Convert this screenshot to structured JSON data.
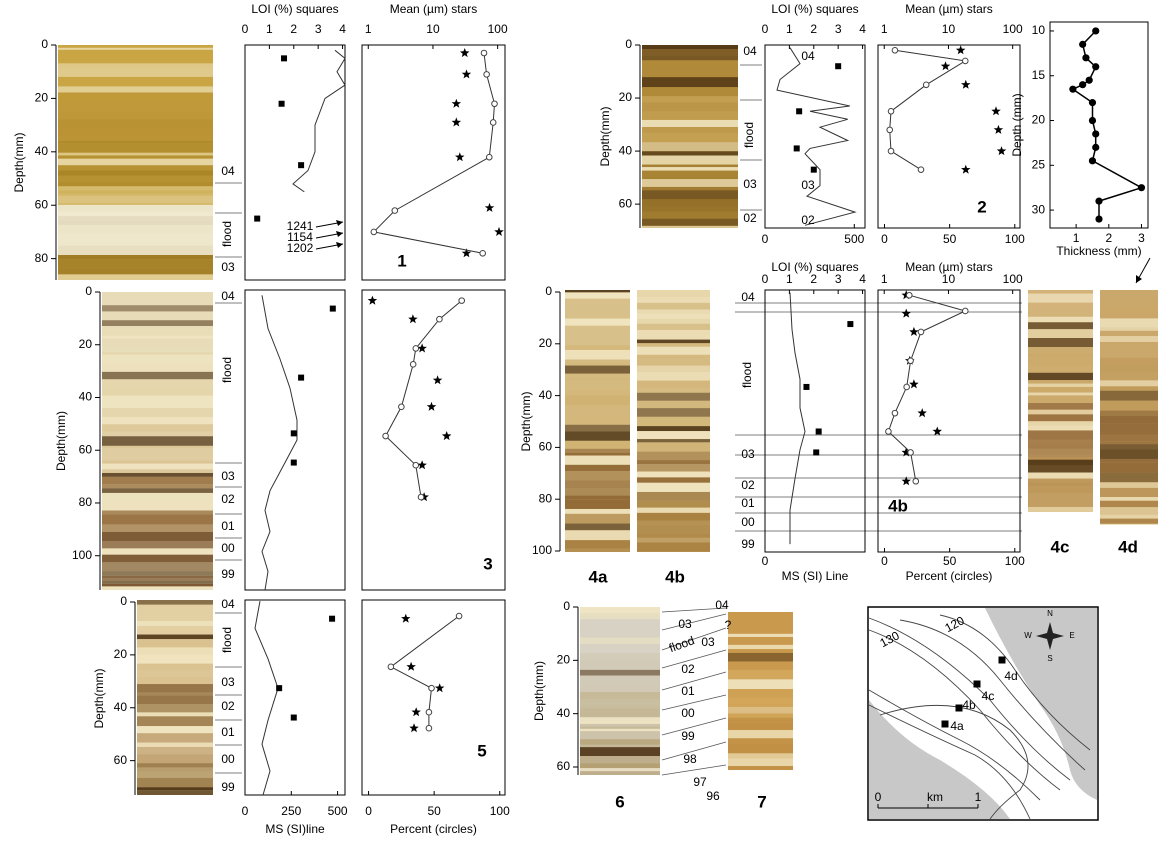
{
  "chart_data": [
    {
      "type": "core",
      "ylim": [
        0,
        88
      ],
      "yticks": [
        0,
        20,
        40,
        60,
        80
      ],
      "y_label": "Depth(mm)",
      "layers": [
        "04",
        "flood",
        "03"
      ]
    },
    {
      "type": "profile",
      "ylim": [
        0,
        88
      ],
      "top": {
        "label": "LOI (%) squares",
        "xlim": [
          0,
          4.1
        ],
        "xticks": [
          0,
          1,
          2,
          3,
          4
        ]
      },
      "bottom": {
        "xlim": [
          0,
          540
        ]
      },
      "annotations": [
        "1241",
        "1154",
        "1202"
      ],
      "series": [
        {
          "axis": "bottom",
          "marker": "line",
          "values": [
            486,
            540,
            497,
            540,
            432,
            378,
            378,
            340,
            259,
            320
          ],
          "depth": [
            2,
            5,
            10,
            15,
            20,
            30,
            40,
            47,
            52,
            55
          ]
        },
        {
          "axis": "top",
          "marker": "square",
          "values": [
            1.6,
            1.5,
            2.3,
            0.5
          ],
          "depth": [
            5,
            22,
            45,
            65
          ]
        }
      ]
    },
    {
      "type": "profile",
      "ylim": [
        0,
        88
      ],
      "panel_label": "1",
      "top": {
        "label": "Mean (µm) stars",
        "xlim": [
          0.8,
          130
        ],
        "xticks": [
          1,
          10,
          100
        ],
        "log": true
      },
      "bottom": {
        "xlim": [
          -5,
          104
        ]
      },
      "series": [
        {
          "axis": "top",
          "marker": "star",
          "values": [
            31,
            33,
            23,
            23,
            26,
            75,
            105,
            33
          ],
          "depth": [
            3,
            11,
            22,
            29,
            42,
            61,
            70,
            78
          ]
        },
        {
          "axis": "bottom",
          "marker": "circle",
          "connect": true,
          "values": [
            88,
            90,
            96,
            95,
            92,
            20,
            4,
            87
          ],
          "depth": [
            3,
            11,
            22,
            29,
            42,
            62,
            70,
            78
          ]
        }
      ]
    },
    {
      "type": "core",
      "ylim": [
        0,
        69
      ],
      "yticks": [
        0,
        20,
        40,
        60
      ],
      "y_label": "Depth(mm)",
      "layers": [
        "04",
        "flood",
        "03",
        "02"
      ]
    },
    {
      "type": "profile",
      "ylim": [
        0,
        69
      ],
      "top": {
        "label": "LOI (%) squares",
        "xlim": [
          0,
          4.1
        ],
        "xticks": [
          0,
          1,
          2,
          3,
          4
        ]
      },
      "bottom": {
        "xlim": [
          0,
          560
        ],
        "xticks": [
          0,
          500
        ]
      },
      "annotations": [
        "04",
        "03",
        "02"
      ],
      "series": [
        {
          "axis": "bottom",
          "marker": "line",
          "values": [
            140,
            196,
            84,
            67,
            475,
            252,
            463,
            308,
            463,
            252,
            224,
            308,
            308,
            235,
            504,
            224
          ],
          "depth": [
            1,
            7,
            13,
            17,
            23,
            25,
            28,
            31,
            36,
            39,
            41,
            47,
            53,
            57,
            63,
            68
          ]
        },
        {
          "axis": "top",
          "marker": "square",
          "values": [
            3.0,
            1.4,
            1.3,
            2.0
          ],
          "depth": [
            8,
            25,
            39,
            47
          ]
        }
      ]
    },
    {
      "type": "profile",
      "ylim": [
        0,
        69
      ],
      "panel_label": "2",
      "top": {
        "label": "Mean (µm) stars",
        "xlim": [
          0.8,
          130
        ],
        "xticks": [
          1,
          10,
          100
        ],
        "log": true
      },
      "bottom": {
        "xlim": [
          -5,
          104
        ],
        "xticks": [
          0,
          50,
          100
        ]
      },
      "series": [
        {
          "axis": "top",
          "marker": "star",
          "values": [
            15.5,
            9,
            18.6,
            55,
            60,
            67,
            18.6
          ],
          "depth": [
            2,
            8,
            15,
            25,
            32,
            40,
            47
          ]
        },
        {
          "axis": "bottom",
          "marker": "circle",
          "connect": true,
          "values": [
            8,
            62,
            32,
            5,
            4,
            5,
            28
          ],
          "depth": [
            2,
            6,
            15,
            25,
            32,
            40,
            47
          ]
        }
      ]
    },
    {
      "type": "scatter",
      "x_label": "Thickness (mm)",
      "y_label": "Depth (mm)",
      "xlim": [
        0.2,
        3.2
      ],
      "xticks": [
        1,
        2,
        3
      ],
      "ylim": [
        9,
        32
      ],
      "yticks": [
        10,
        15,
        20,
        25,
        30
      ],
      "values": [
        1.6,
        1.2,
        1.3,
        1.6,
        1.4,
        1.2,
        0.9,
        1.5,
        1.5,
        1.6,
        1.6,
        1.5,
        3.0,
        1.7,
        1.7
      ],
      "depth": [
        10,
        11.5,
        13,
        14,
        15.5,
        16,
        16.5,
        18,
        20,
        21.5,
        23,
        24.5,
        27.5,
        29,
        31
      ]
    },
    {
      "type": "core",
      "ylim": [
        0,
        113
      ],
      "yticks": [
        0,
        20,
        40,
        60,
        80,
        100
      ],
      "y_label": "Depth(mm)",
      "layers": [
        "04",
        "flood",
        "03",
        "02",
        "01",
        "00",
        "99"
      ]
    },
    {
      "type": "profile",
      "ylim": [
        0,
        113
      ],
      "top": {
        "xlim": [
          0,
          4.1
        ]
      },
      "bottom": {
        "xlim": [
          0,
          540
        ]
      },
      "series": [
        {
          "axis": "bottom",
          "marker": "line",
          "values": [
            92,
            124,
            189,
            243,
            281,
            281,
            216,
            135,
            108,
            135,
            92,
            124,
            108
          ],
          "depth": [
            2,
            14.5,
            26,
            37,
            49,
            56.5,
            65,
            75.6,
            83,
            91,
            98.5,
            106,
            113
          ]
        },
        {
          "axis": "top",
          "marker": "square",
          "values": [
            3.6,
            2.3,
            2.0,
            2.0
          ],
          "depth": [
            7,
            33,
            54,
            65
          ]
        }
      ]
    },
    {
      "type": "profile",
      "ylim": [
        0,
        113
      ],
      "panel_label": "3",
      "top": {
        "xlim": [
          0.8,
          130
        ],
        "log": true
      },
      "bottom": {
        "xlim": [
          -5,
          104
        ]
      },
      "series": [
        {
          "axis": "top",
          "marker": "star",
          "values": [
            1.16,
            4.9,
            6.8,
            11.8,
            9.5,
            16.3,
            6.8,
            7.3
          ],
          "depth": [
            4,
            11,
            22,
            34,
            44,
            55,
            66,
            78
          ]
        },
        {
          "axis": "bottom",
          "marker": "circle",
          "connect": true,
          "values": [
            71,
            54,
            36,
            34,
            25,
            13,
            36,
            40
          ],
          "depth": [
            4,
            11,
            22,
            28,
            44,
            55,
            66,
            78
          ]
        }
      ]
    },
    {
      "type": "core",
      "ylim": [
        0,
        100
      ],
      "yticks": [
        0,
        20,
        40,
        60,
        80,
        100
      ],
      "y_label": "Depth(mm)",
      "layers": [
        "04",
        "flood",
        "03",
        "02",
        "01",
        "00",
        "99"
      ],
      "photo_labels": [
        "4a",
        "4b"
      ]
    },
    {
      "type": "profile",
      "ylim": [
        0,
        100
      ],
      "top": {
        "label": "LOI (%) squares",
        "xlim": [
          0,
          4.1
        ],
        "xticks": [
          0,
          1,
          2,
          3,
          4
        ]
      },
      "bottom": {
        "label": "MS (SI) Line",
        "xlim": [
          0,
          540
        ],
        "xticks": [
          0
        ]
      },
      "series": [
        {
          "axis": "bottom",
          "marker": "line",
          "values": [
            135,
            146,
            162,
            189,
            189,
            216,
            189,
            162,
            135,
            135
          ],
          "depth": [
            1,
            15,
            24,
            34,
            45,
            54,
            61,
            72,
            84,
            97
          ]
        },
        {
          "axis": "top",
          "marker": "square",
          "values": [
            3.5,
            1.7,
            2.2,
            2.1
          ],
          "depth": [
            13,
            37,
            54,
            62
          ]
        }
      ]
    },
    {
      "type": "profile",
      "ylim": [
        0,
        100
      ],
      "panel_label": "4b",
      "top": {
        "label": "Mean (µm) stars",
        "xlim": [
          0.8,
          130
        ],
        "xticks": [
          1,
          10,
          100
        ],
        "log": true
      },
      "bottom": {
        "label": "Percent (circles)",
        "xlim": [
          -5,
          104
        ],
        "xticks": [
          0,
          50,
          100
        ]
      },
      "series": [
        {
          "axis": "top",
          "marker": "star",
          "values": [
            2.2,
            2.2,
            2.9,
            2.5,
            2.9,
            3.9,
            6.7,
            2.2,
            2.2
          ],
          "depth": [
            2,
            9,
            16,
            27,
            36,
            47,
            54,
            62,
            73
          ]
        },
        {
          "axis": "bottom",
          "marker": "circle",
          "connect": true,
          "values": [
            19,
            62,
            28,
            20,
            17,
            8,
            3,
            20,
            24
          ],
          "depth": [
            2,
            8,
            16,
            27,
            37,
            47,
            54,
            62,
            73
          ]
        }
      ]
    },
    {
      "type": "core",
      "photo_labels": [
        "4c",
        "4d"
      ]
    },
    {
      "type": "core",
      "ylim": [
        0,
        73
      ],
      "yticks": [
        0,
        20,
        40,
        60
      ],
      "y_label": "Depth(mm)",
      "layers": [
        "04",
        "flood",
        "03",
        "02",
        "01",
        "00",
        "99"
      ]
    },
    {
      "type": "profile",
      "ylim": [
        0,
        73
      ],
      "top": {
        "xlim": [
          0,
          4.1
        ]
      },
      "bottom": {
        "label": "MS (SI)line",
        "xlim": [
          0,
          540
        ],
        "xticks": [
          0,
          250,
          500
        ]
      },
      "series": [
        {
          "axis": "bottom",
          "marker": "line",
          "values": [
            81,
            54,
            124,
            178,
            124,
            92,
            135,
            97
          ],
          "depth": [
            0.4,
            10.6,
            22,
            33,
            45,
            54,
            64,
            73
          ]
        },
        {
          "axis": "top",
          "marker": "square",
          "values": [
            3.57,
            1.4,
            2.0
          ],
          "depth": [
            7,
            33,
            44
          ]
        }
      ]
    },
    {
      "type": "profile",
      "ylim": [
        0,
        73
      ],
      "panel_label": "5",
      "top": {
        "xlim": [
          0.8,
          130
        ],
        "log": true
      },
      "bottom": {
        "label": "Percent (circles)",
        "xlim": [
          -5,
          104
        ],
        "xticks": [
          0,
          50,
          100
        ]
      },
      "series": [
        {
          "axis": "top",
          "marker": "star",
          "values": [
            3.8,
            4.6,
            12.7,
            5.5,
            5.1
          ],
          "depth": [
            7,
            25,
            33,
            42,
            48
          ]
        },
        {
          "axis": "bottom",
          "marker": "circle",
          "connect": true,
          "values": [
            69,
            17,
            48,
            46,
            46
          ],
          "depth": [
            6,
            25,
            33,
            42,
            48
          ]
        }
      ]
    },
    {
      "type": "core",
      "ylim": [
        0,
        63
      ],
      "yticks": [
        0,
        20,
        40,
        60
      ],
      "y_label": "Depth(mm)",
      "layers": [
        "04",
        "03",
        "?",
        "flood",
        "03",
        "02",
        "01",
        "00",
        "99",
        "98",
        "97",
        "96"
      ],
      "photo_labels": [
        "6",
        "7"
      ]
    },
    {
      "type": "map",
      "labels": [
        "130",
        "120",
        "N",
        "W",
        "E",
        "S",
        "4d",
        "4c",
        "4b",
        "4a",
        "0",
        "km",
        "1"
      ]
    }
  ]
}
